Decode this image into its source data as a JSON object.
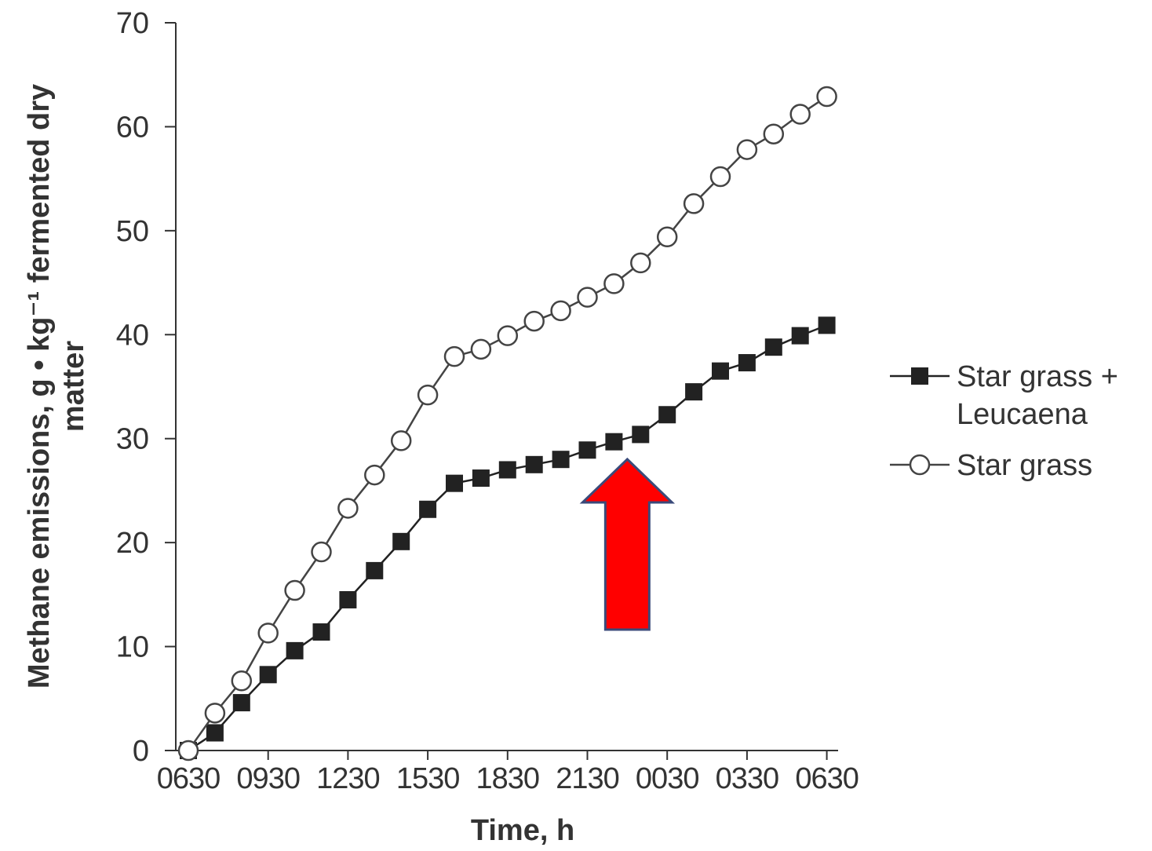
{
  "chart_data": {
    "type": "line",
    "title": "",
    "xlabel": "Time, h",
    "ylabel": "Methane emissions, g • kg⁻¹ fermented dry matter",
    "ylim": [
      0,
      70
    ],
    "yticks": [
      0,
      10,
      20,
      30,
      40,
      50,
      60,
      70
    ],
    "xticks": [
      "0630",
      "0930",
      "1230",
      "1530",
      "1830",
      "2130",
      "0030",
      "0330",
      "0630"
    ],
    "x_hours_from_start": [
      0,
      1,
      2,
      3,
      4,
      5,
      6,
      7,
      8,
      9,
      10,
      11,
      12,
      13,
      14,
      15,
      16,
      17,
      18,
      19,
      20,
      21,
      22,
      23,
      24
    ],
    "grid": false,
    "legend_position": "right",
    "series": [
      {
        "name": "Star grass + Leucaena",
        "marker": "filled-square",
        "color": "#222222",
        "values": [
          0,
          1.7,
          4.6,
          7.3,
          9.6,
          11.4,
          14.5,
          17.3,
          20.1,
          23.2,
          25.7,
          26.2,
          27.0,
          27.5,
          28.0,
          28.9,
          29.7,
          30.4,
          32.3,
          34.5,
          36.5,
          37.3,
          38.8,
          39.9,
          40.9
        ]
      },
      {
        "name": "Star grass",
        "marker": "open-circle",
        "color": "#444444",
        "values": [
          0,
          3.6,
          6.7,
          11.3,
          15.4,
          19.1,
          23.3,
          26.5,
          29.8,
          34.2,
          37.9,
          38.6,
          39.9,
          41.3,
          42.3,
          43.6,
          44.9,
          46.9,
          49.4,
          52.6,
          55.2,
          57.8,
          59.3,
          61.2,
          62.9
        ]
      }
    ],
    "annotations": [
      {
        "type": "arrow",
        "direction": "up",
        "color": "#ff0000",
        "border": "#3a4a7a",
        "points_to_x_hours": 16.5
      }
    ]
  },
  "legend": {
    "items": [
      {
        "lines": [
          "Star grass +",
          "Leucaena"
        ]
      },
      {
        "lines": [
          "Star grass"
        ]
      }
    ]
  }
}
